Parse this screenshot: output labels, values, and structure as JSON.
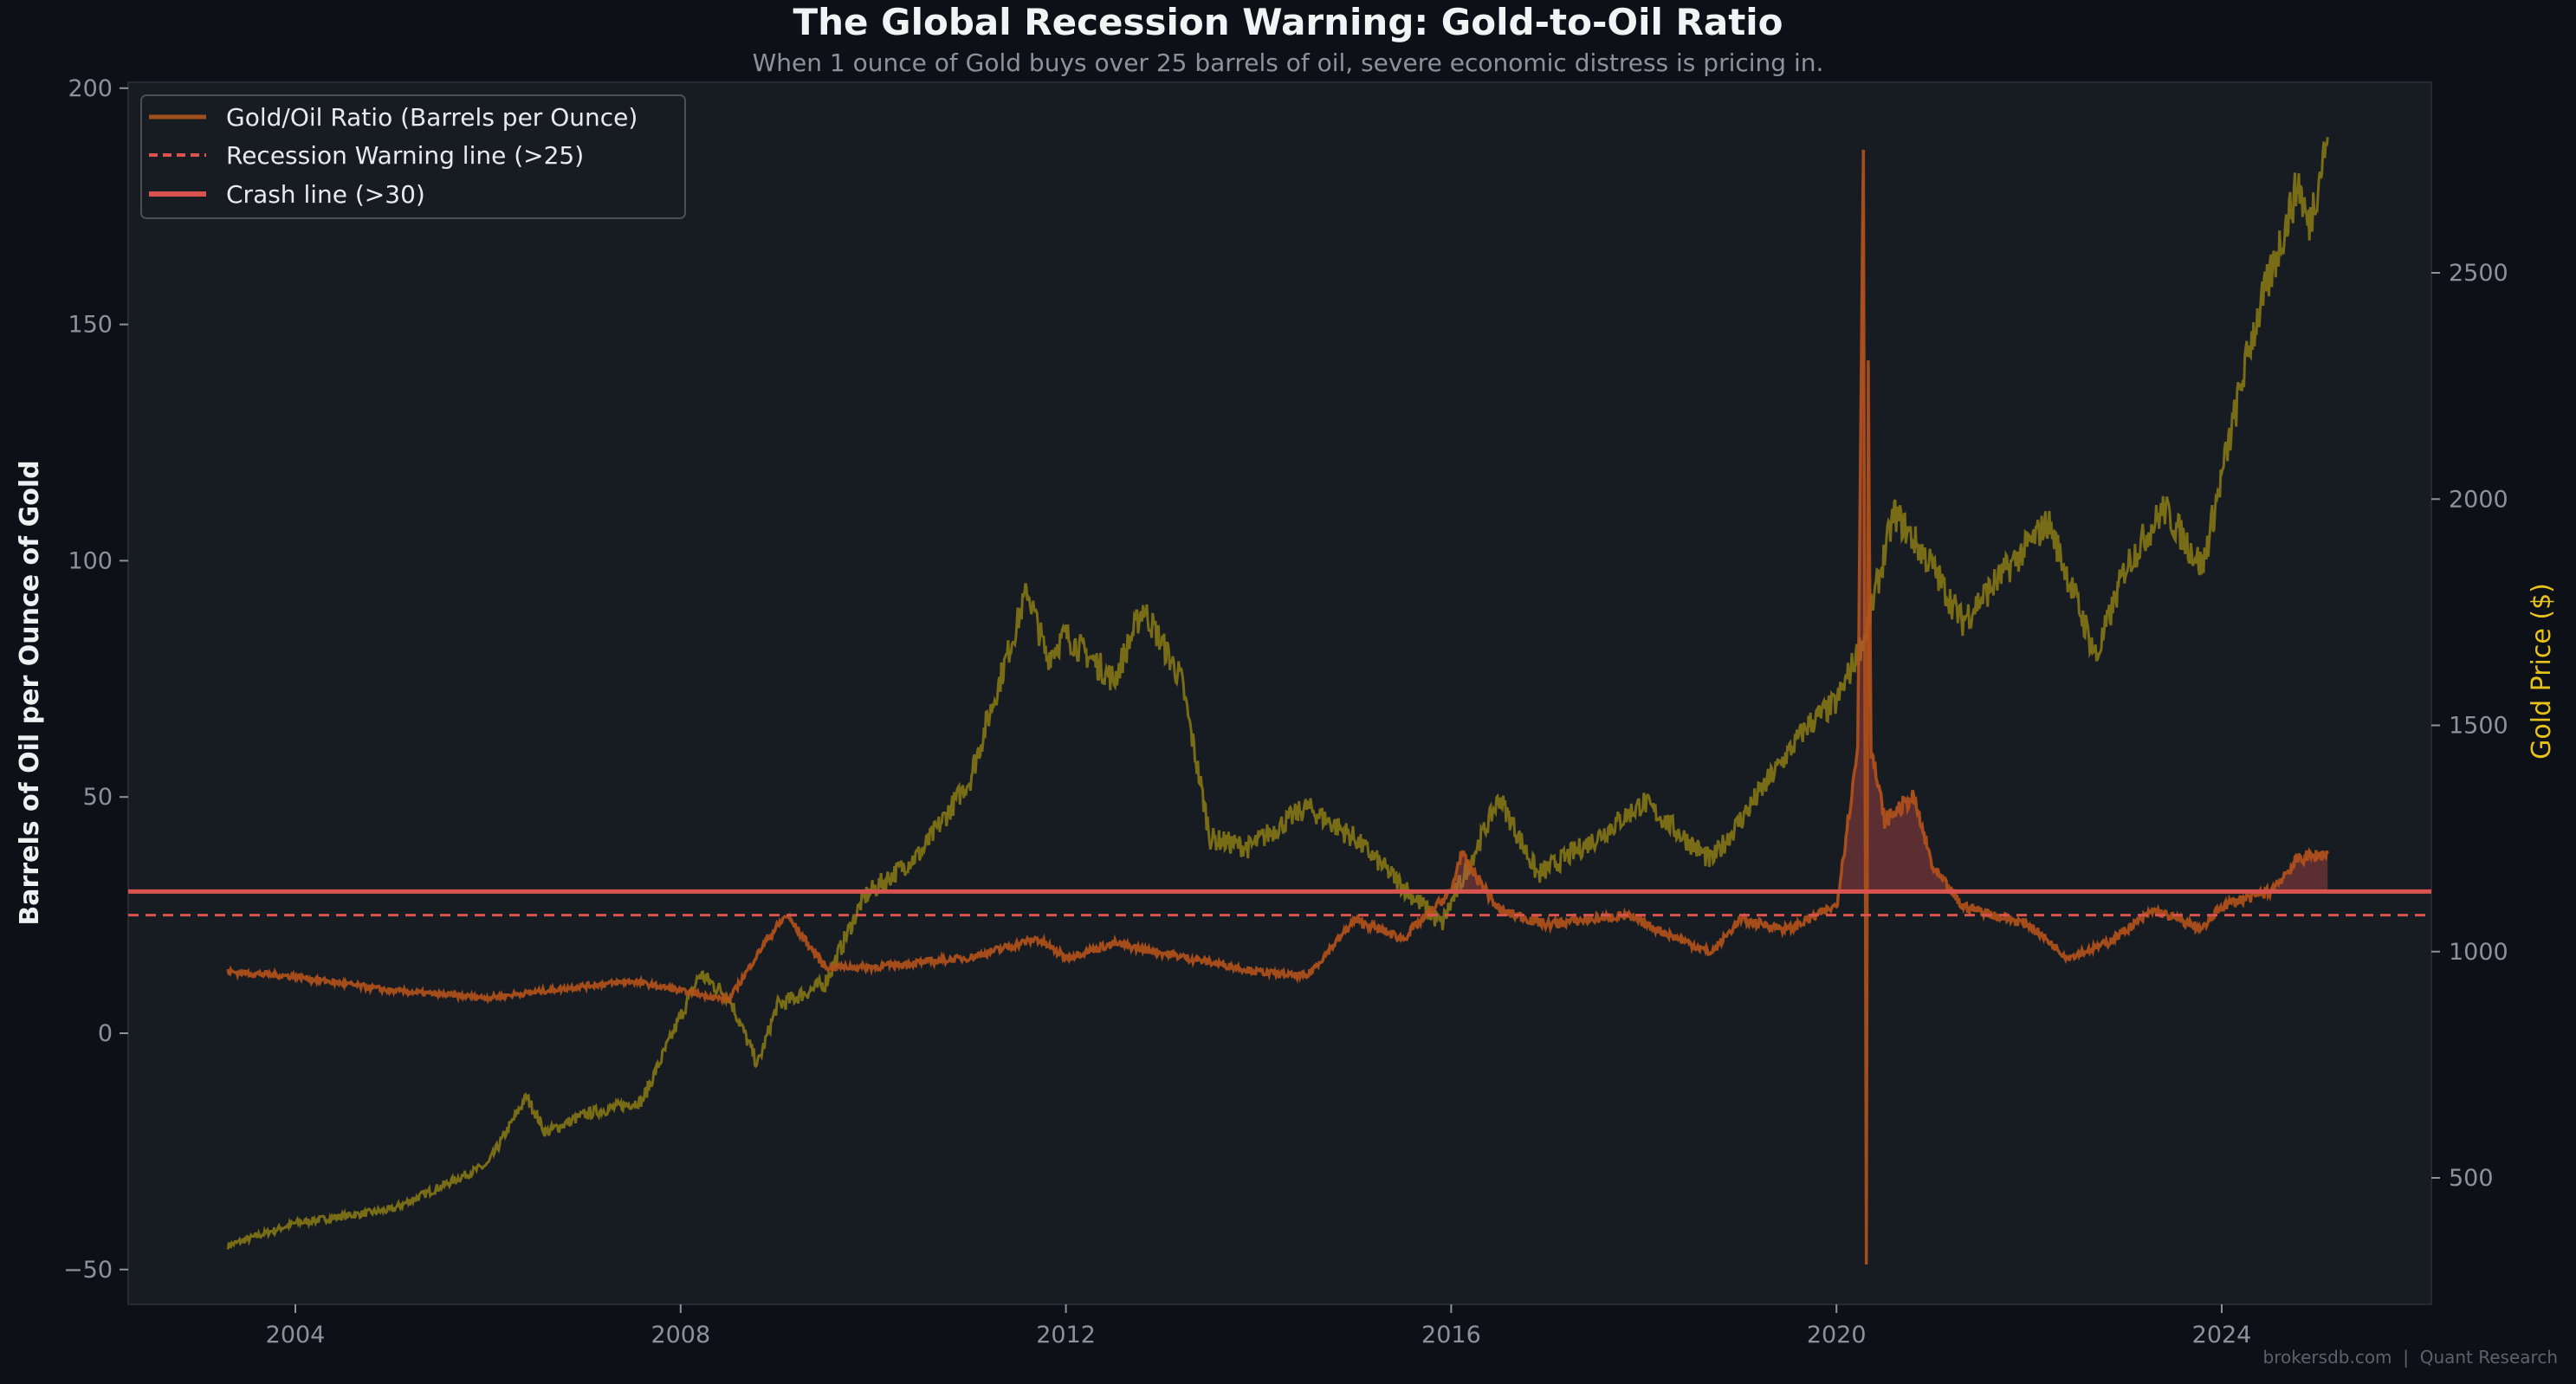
{
  "chart_data": {
    "type": "line",
    "title": "The Global Recession Warning: Gold-to-Oil Ratio",
    "subtitle": "When 1 ounce of Gold buys over 25 barrels of oil, severe economic distress is pricing in.",
    "ylabel": "Barrels of Oil per Ounce of Gold",
    "y2label": "Gold Price ($)",
    "xlim": [
      2002.2,
      2026.2
    ],
    "ylim": [
      -57,
      202
    ],
    "y2lim": [
      260,
      2990
    ],
    "xticks": [
      "2004",
      "2008",
      "2012",
      "2016",
      "2020",
      "2024"
    ],
    "yticks": [
      "200",
      "150",
      "100",
      "50",
      "0",
      "−50"
    ],
    "y2ticks": [
      "2500",
      "2000",
      "1500",
      "1000",
      "500"
    ],
    "legend_position": "top-left",
    "legend": [
      "Gold/Oil Ratio (Barrels per Ounce)",
      "Recession Warning line (>25)",
      "Crash line (>30)"
    ],
    "grid": false,
    "colors": {
      "ratio": "#b5521b",
      "gold": "#8a7a14",
      "lines": "#d9534f",
      "y2label": "#e8c21c",
      "fill": "#d9534f"
    },
    "reference_lines": [
      {
        "name": "Recession Warning line (>25)",
        "y": 25,
        "style": "dashed"
      },
      {
        "name": "Crash line (>30)",
        "y": 30,
        "style": "solid"
      }
    ],
    "series": [
      {
        "name": "Gold/Oil Ratio (Barrels per Ounce)",
        "axis": "left",
        "x": [
          2003.3,
          2004.0,
          2005.0,
          2006.0,
          2007.0,
          2007.5,
          2008.0,
          2008.5,
          2008.9,
          2009.1,
          2009.5,
          2010.0,
          2011.0,
          2011.7,
          2012.0,
          2012.5,
          2013.5,
          2014.0,
          2014.5,
          2015.0,
          2015.5,
          2016.0,
          2016.1,
          2016.5,
          2017.0,
          2017.8,
          2018.7,
          2019.0,
          2019.5,
          2020.0,
          2020.22,
          2020.28,
          2020.31,
          2020.33,
          2020.36,
          2020.5,
          2020.8,
          2021.0,
          2021.3,
          2022.0,
          2022.4,
          2022.8,
          2023.3,
          2023.8,
          2024.0,
          2024.5,
          2024.8,
          2025.1
        ],
        "values": [
          13,
          12,
          9,
          7.5,
          10,
          11,
          9,
          7,
          20,
          25,
          14,
          14,
          16,
          20,
          16,
          19,
          15,
          13,
          12,
          24,
          20,
          30,
          38,
          26,
          23,
          25,
          17,
          24,
          22,
          27,
          60,
          190,
          -47,
          140,
          60,
          45,
          50,
          35,
          27,
          23,
          16,
          19,
          26,
          22,
          27,
          30,
          37,
          38
        ]
      },
      {
        "name": "Gold Price",
        "axis": "right",
        "x": [
          2003.3,
          2004.0,
          2005.0,
          2006.0,
          2006.4,
          2006.6,
          2007.0,
          2007.6,
          2008.2,
          2008.5,
          2008.8,
          2009.0,
          2009.5,
          2009.9,
          2010.5,
          2011.0,
          2011.6,
          2011.8,
          2012.0,
          2012.5,
          2012.8,
          2013.2,
          2013.5,
          2013.9,
          2014.5,
          2015.0,
          2015.9,
          2016.5,
          2016.9,
          2017.5,
          2018.0,
          2018.7,
          2019.0,
          2019.7,
          2020.0,
          2020.3,
          2020.6,
          2021.0,
          2021.3,
          2022.2,
          2022.7,
          2023.0,
          2023.4,
          2023.8,
          2024.0,
          2024.3,
          2024.8,
          2024.9,
          2025.1
        ],
        "values": [
          350,
          400,
          430,
          530,
          680,
          600,
          640,
          670,
          950,
          900,
          750,
          880,
          930,
          1120,
          1220,
          1380,
          1800,
          1650,
          1700,
          1600,
          1760,
          1600,
          1250,
          1230,
          1320,
          1250,
          1060,
          1340,
          1170,
          1250,
          1330,
          1200,
          1290,
          1500,
          1550,
          1700,
          1970,
          1850,
          1730,
          1950,
          1650,
          1850,
          1980,
          1850,
          2050,
          2350,
          2700,
          2600,
          2800
        ]
      }
    ]
  },
  "footer": "brokersdb.com  |  Quant Research"
}
